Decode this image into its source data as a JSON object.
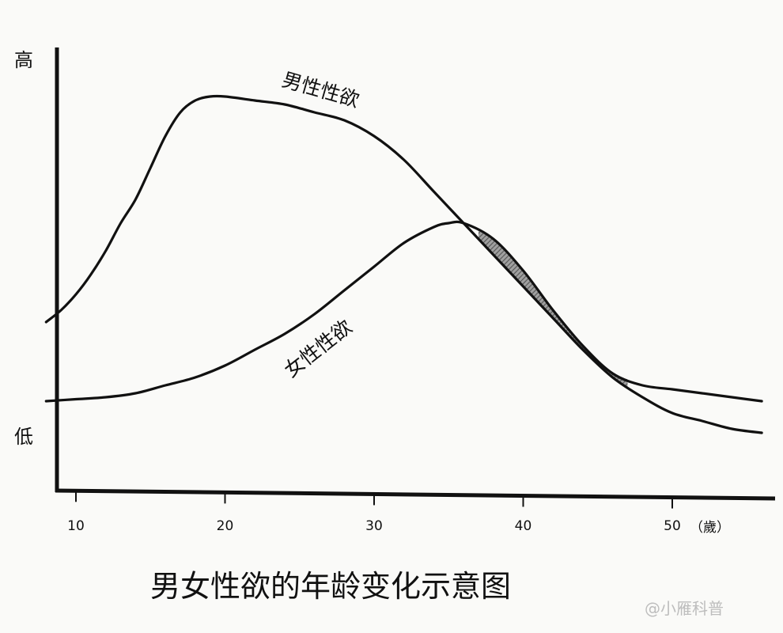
{
  "chart_data": {
    "type": "line",
    "title": "男女性欲的年龄变化示意图",
    "xlabel": "（歲）",
    "ylabel_high": "高",
    "ylabel_low": "低",
    "xlim": [
      9,
      57
    ],
    "ylim": [
      0,
      100
    ],
    "x_ticks": [
      10,
      20,
      30,
      40,
      50
    ],
    "series": [
      {
        "name": "男性性欲",
        "x": [
          8,
          9,
          10,
          11,
          12,
          13,
          14,
          15,
          16,
          17,
          18,
          19,
          20,
          22,
          24,
          26,
          28,
          30,
          32,
          34,
          36,
          38,
          40,
          42,
          44,
          46,
          48,
          50,
          52,
          54,
          56
        ],
        "y": [
          33,
          36,
          40,
          45,
          51,
          58,
          64,
          72,
          80,
          86,
          89,
          90,
          90,
          89,
          88,
          86,
          84,
          80,
          74,
          66,
          58,
          50,
          42,
          34,
          26,
          19,
          14,
          10,
          8,
          6,
          5
        ]
      },
      {
        "name": "女性性欲",
        "x": [
          8,
          10,
          12,
          14,
          16,
          18,
          20,
          22,
          24,
          26,
          28,
          30,
          32,
          34,
          35,
          36,
          38,
          40,
          42,
          44,
          46,
          48,
          50,
          52,
          54,
          56
        ],
        "y": [
          13,
          13.5,
          14,
          15,
          17,
          19,
          22,
          26,
          30,
          35,
          41,
          47,
          53,
          57,
          58,
          58,
          54,
          46,
          36,
          27,
          20,
          17,
          16,
          15,
          14,
          13
        ]
      }
    ],
    "annotations": [
      "shaded overlap between 37 and 47"
    ],
    "shaded_overlap": [
      37,
      47
    ],
    "grid": false,
    "legend": "inline labels on curves"
  },
  "watermark": "@小雁科普",
  "colors": {
    "ink": "#111111",
    "background": "#fafaf8",
    "shade": "#8a8a8a"
  }
}
